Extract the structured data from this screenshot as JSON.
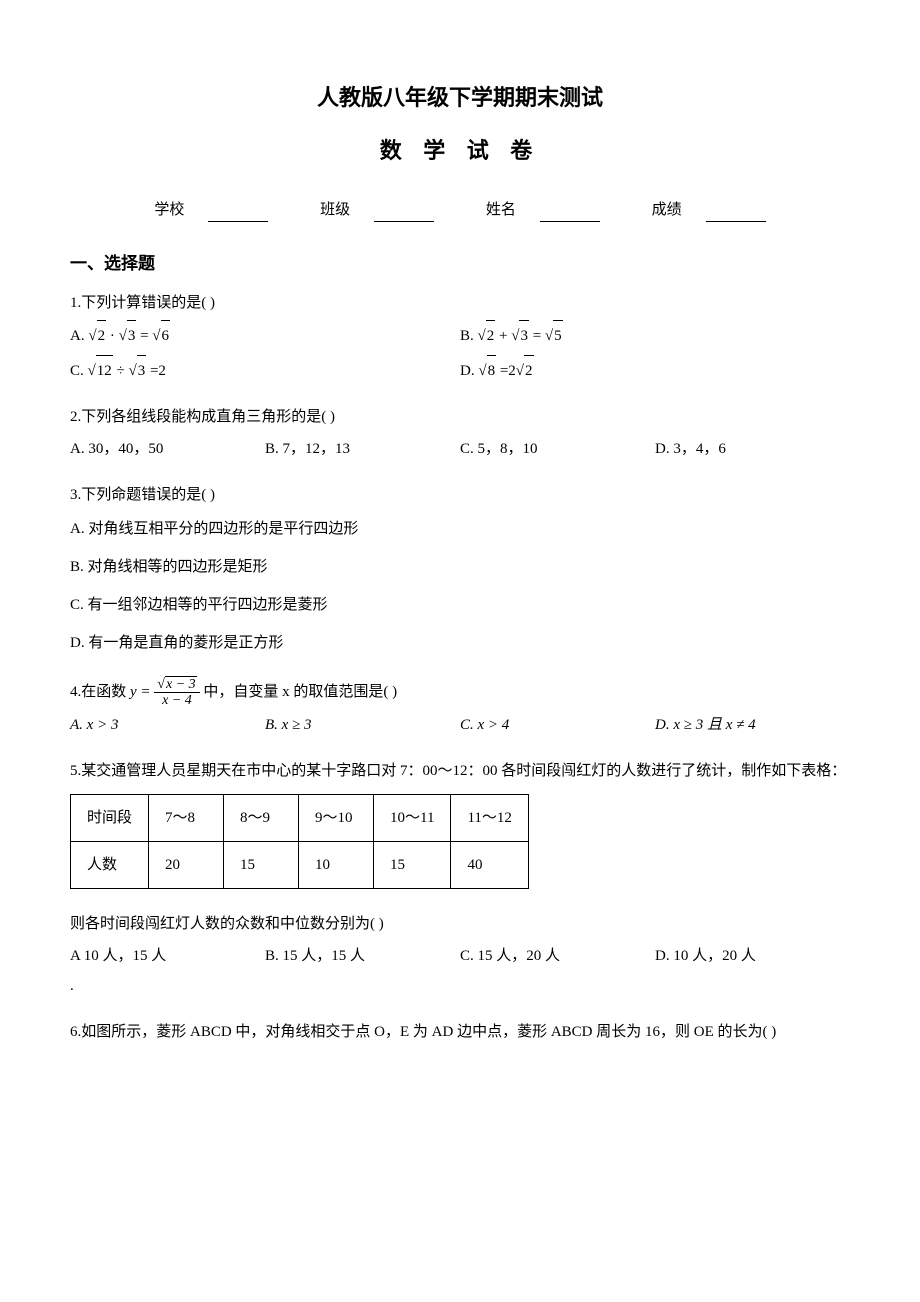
{
  "header": {
    "title1": "人教版八年级下学期期末测试",
    "title2": "数 学 试 卷",
    "school_label": "学校",
    "class_label": "班级",
    "name_label": "姓名",
    "score_label": "成绩"
  },
  "section1_title": "一、选择题",
  "q1": {
    "stem": "1.下列计算错误的是(    )",
    "optA_pre": "A. ",
    "optA_r1": "2",
    "optA_mid": " · ",
    "optA_r2": "3",
    "optA_eq": " = ",
    "optA_r3": "6",
    "optB_pre": "B. ",
    "optB_r1": "2",
    "optB_mid": " + ",
    "optB_r2": "3",
    "optB_eq": " = ",
    "optB_r3": "5",
    "optC_pre": "C. ",
    "optC_r1": "12",
    "optC_mid": " ÷ ",
    "optC_r2": "3",
    "optC_eq": " =2",
    "optD_pre": "D. ",
    "optD_r1": "8",
    "optD_eq": " =2",
    "optD_r2": "2"
  },
  "q2": {
    "stem": "2.下列各组线段能构成直角三角形的是(    )",
    "optA": "A. 30，40，50",
    "optB": "B. 7，12，13",
    "optC": "C. 5，8，10",
    "optD": "D. 3，4，6"
  },
  "q3": {
    "stem": "3.下列命题错误的是(    )",
    "optA": "A. 对角线互相平分的四边形的是平行四边形",
    "optB": "B. 对角线相等的四边形是矩形",
    "optC": "C. 有一组邻边相等的平行四边形是菱形",
    "optD": "D. 有一角是直角的菱形是正方形"
  },
  "q4": {
    "stem_pre": "4.在函数 ",
    "y_eq": "y = ",
    "num_rad": "x − 3",
    "den": "x − 4",
    "stem_post": " 中，自变量 x 的取值范围是(    )",
    "optA": "A.  x > 3",
    "optB": "B.  x ≥ 3",
    "optC": "C.  x > 4",
    "optD": "D.  x ≥ 3 且 x ≠ 4"
  },
  "q5": {
    "stem": "5.某交通管理人员星期天在市中心的某十字路口对 7：00～12：00 各时间段闯红灯的人数进行了统计，制作如下表格：",
    "table_headers": [
      "时间段",
      "7～8",
      "8～9",
      "9～10",
      "10～11",
      "11～12"
    ],
    "table_row_label": "人数",
    "table_values": [
      "20",
      "15",
      "10",
      "15",
      "40"
    ],
    "stem2": "则各时间段闯红灯人数的众数和中位数分别为(    )",
    "optA": "A  10 人，15 人",
    "optB": "B. 15 人，15 人",
    "optC": "C. 15 人，20 人",
    "optD": "D. 10 人，20 人",
    "dot": "."
  },
  "q6": {
    "stem": "6.如图所示，菱形 ABCD 中，对角线相交于点 O，E 为 AD 边中点，菱形 ABCD 周长为 16，则 OE 的长为(    )"
  }
}
